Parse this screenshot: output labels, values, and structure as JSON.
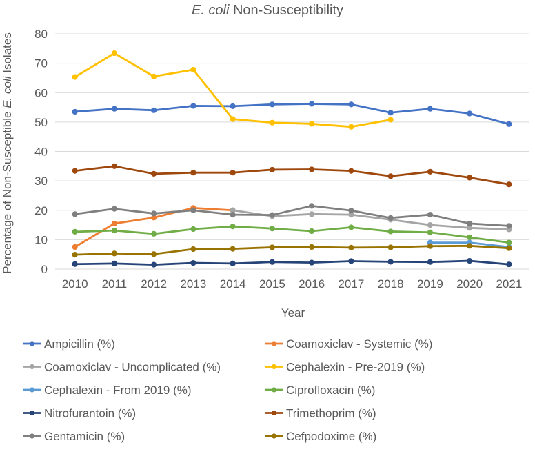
{
  "chart_data": {
    "type": "line",
    "title_italic": "E. coli",
    "title_rest": " Non-Susceptibility",
    "xlabel": "Year",
    "ylabel_part1": "Percentage of Non-Susceptible ",
    "ylabel_italic": "E. coli",
    "ylabel_part2": " Isolates",
    "ylim": [
      0,
      80
    ],
    "yticks": [
      0,
      10,
      20,
      30,
      40,
      50,
      60,
      70,
      80
    ],
    "grid": true,
    "legend_position": "bottom",
    "categories": [
      "2010",
      "2011",
      "2012",
      "2013",
      "2014",
      "2015",
      "2016",
      "2017",
      "2018",
      "2019",
      "2020",
      "2021"
    ],
    "series": [
      {
        "name": "Ampicillin (%)",
        "color": "#4472C4",
        "values": [
          53.5,
          54.5,
          54.0,
          55.5,
          55.4,
          56.0,
          56.2,
          56.0,
          53.2,
          54.5,
          52.9,
          49.3
        ]
      },
      {
        "name": "Coamoxiclav - Systemic (%)",
        "color": "#ED7D31",
        "values": [
          7.5,
          15.5,
          17.5,
          20.8,
          20.0,
          null,
          null,
          null,
          null,
          null,
          null,
          null
        ]
      },
      {
        "name": "Coamoxiclav - Uncomplicated (%)",
        "color": "#A5A5A5",
        "values": [
          null,
          null,
          null,
          null,
          20.0,
          18.0,
          18.7,
          18.5,
          16.8,
          15.0,
          14.0,
          13.5
        ]
      },
      {
        "name": "Cephalexin - Pre-2019 (%)",
        "color": "#FFC000",
        "values": [
          65.3,
          73.4,
          65.5,
          67.8,
          51.0,
          49.8,
          49.4,
          48.4,
          50.8,
          null,
          null,
          null
        ]
      },
      {
        "name": "Cephalexin - From 2019 (%)",
        "color": "#5B9BD5",
        "values": [
          null,
          null,
          null,
          null,
          null,
          null,
          null,
          null,
          null,
          9.0,
          9.0,
          7.5
        ]
      },
      {
        "name": "Ciprofloxacin (%)",
        "color": "#70AD47",
        "values": [
          12.7,
          13.1,
          12.0,
          13.6,
          14.5,
          13.8,
          12.9,
          14.2,
          12.8,
          12.5,
          10.8,
          9.0
        ]
      },
      {
        "name": "Nitrofurantoin (%)",
        "color": "#264478",
        "values": [
          1.7,
          1.9,
          1.5,
          2.1,
          1.9,
          2.4,
          2.2,
          2.7,
          2.5,
          2.4,
          2.8,
          1.6
        ]
      },
      {
        "name": "Trimethoprim (%)",
        "color": "#9E480E",
        "values": [
          33.4,
          35.0,
          32.4,
          32.8,
          32.8,
          33.8,
          33.9,
          33.4,
          31.6,
          33.1,
          31.1,
          28.8
        ]
      },
      {
        "name": "Gentamicin (%)",
        "color": "#7F7F7F",
        "values": [
          18.7,
          20.5,
          18.9,
          20.0,
          18.5,
          18.4,
          21.5,
          19.9,
          17.4,
          18.5,
          15.5,
          14.7
        ]
      },
      {
        "name": "Cefpodoxime (%)",
        "color": "#997300",
        "values": [
          4.9,
          5.3,
          5.1,
          6.8,
          6.9,
          7.4,
          7.5,
          7.3,
          7.4,
          7.8,
          7.9,
          7.1
        ]
      }
    ]
  }
}
